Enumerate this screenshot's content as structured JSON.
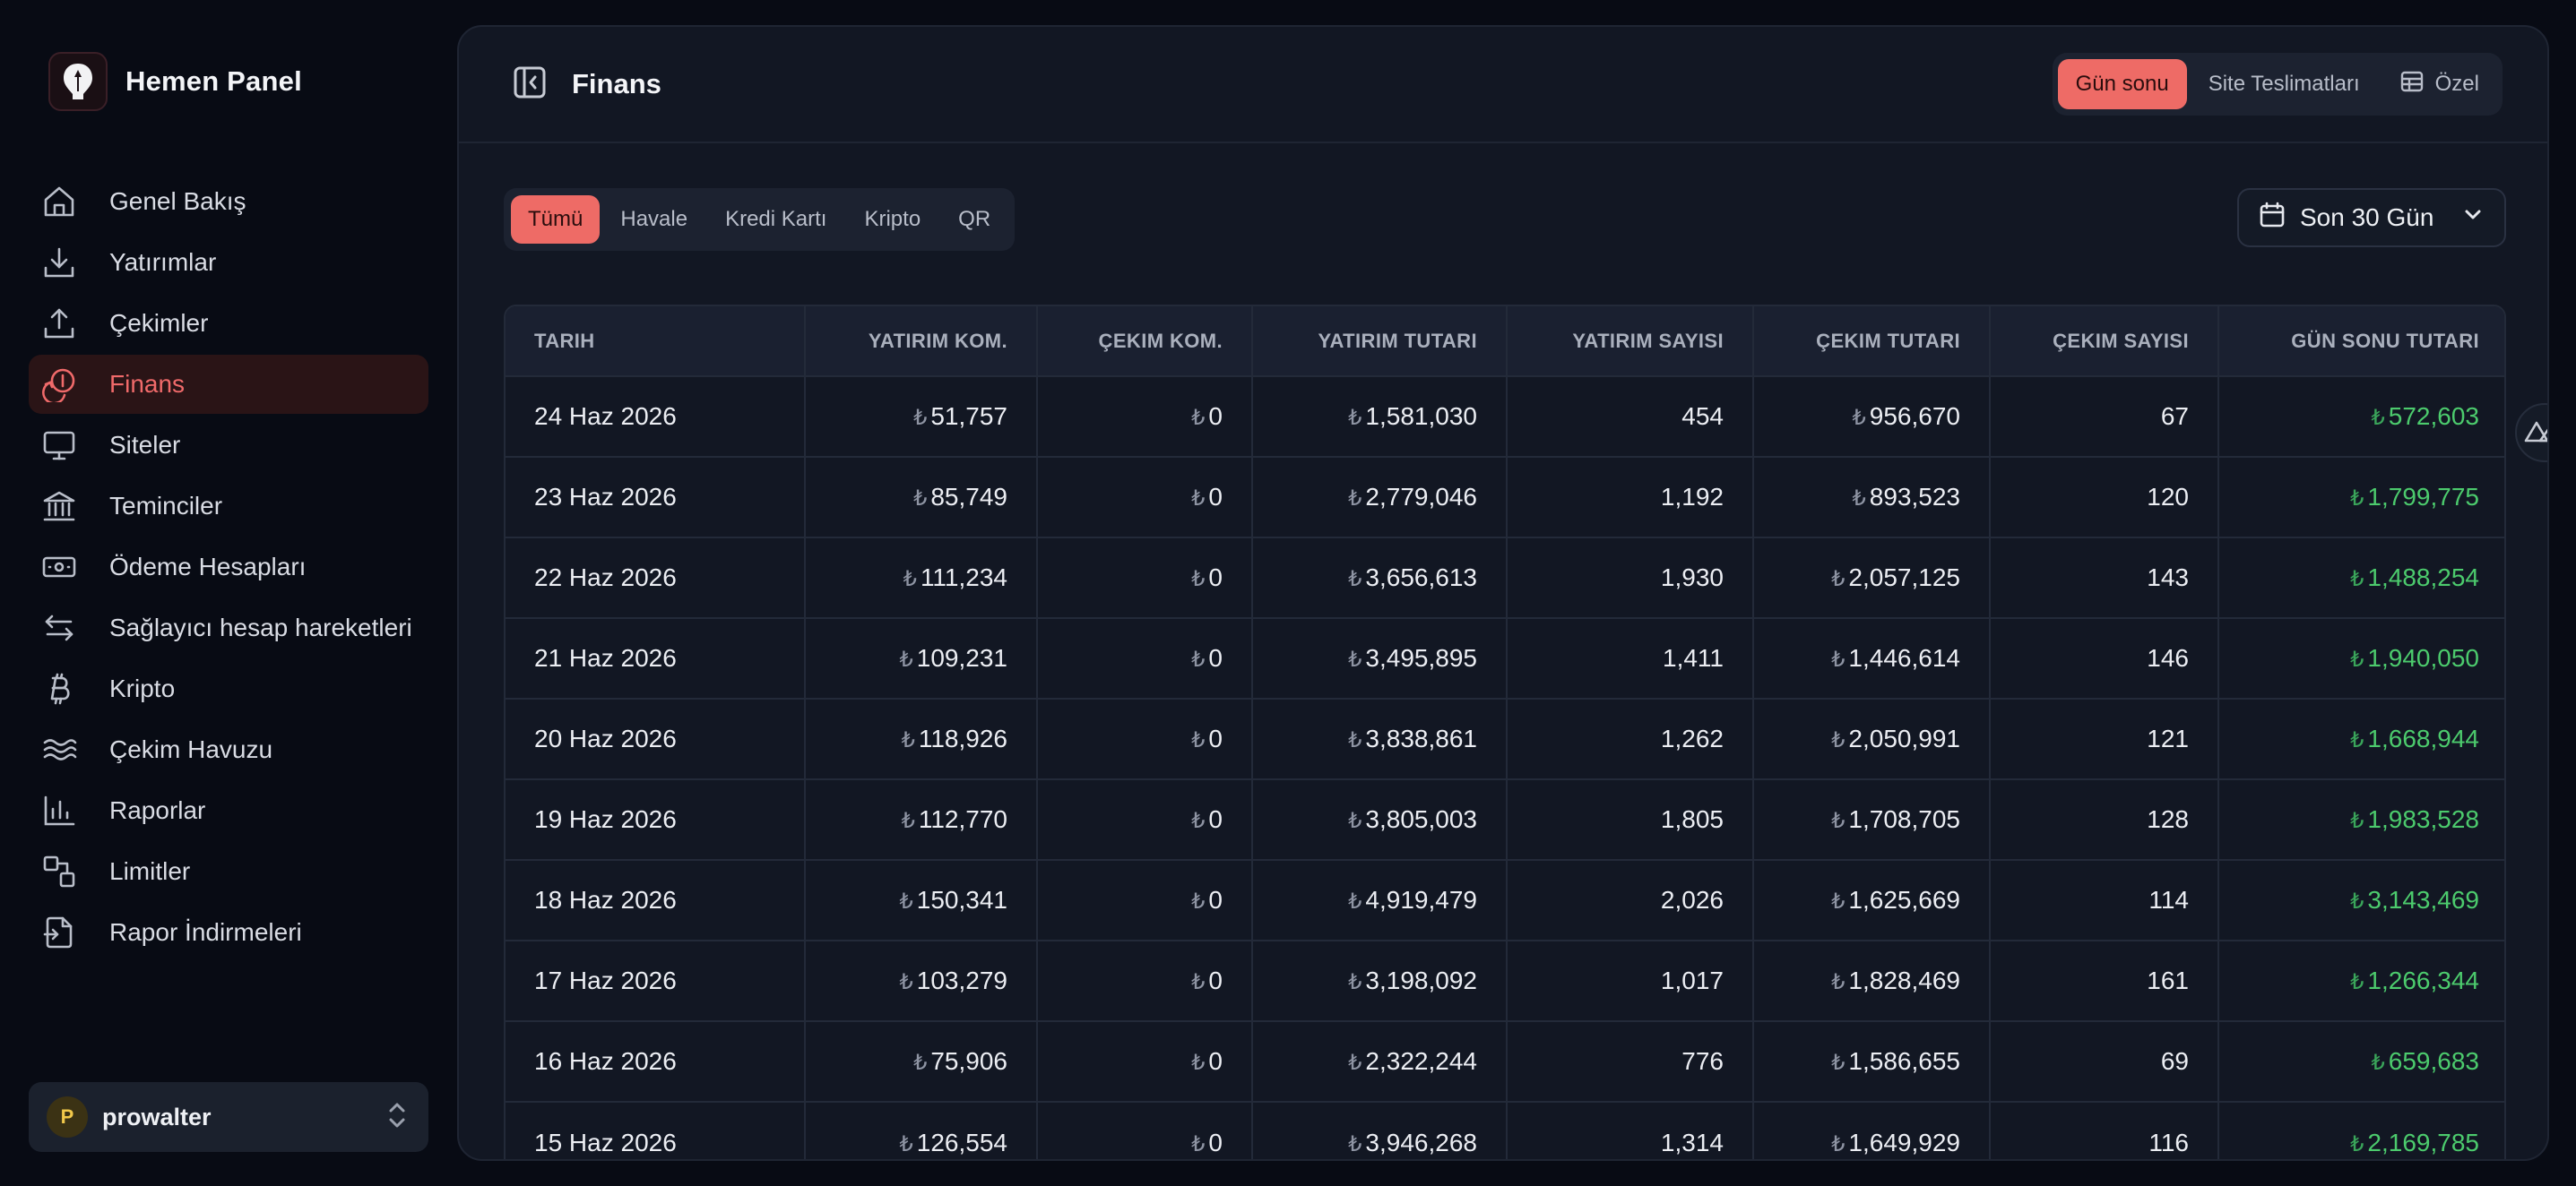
{
  "brand": {
    "name": "Hemen Panel"
  },
  "sidebar": {
    "items": [
      {
        "label": "Genel Bakış",
        "icon": "home-icon",
        "active": false
      },
      {
        "label": "Yatırımlar",
        "icon": "download-icon",
        "active": false
      },
      {
        "label": "Çekimler",
        "icon": "upload-icon",
        "active": false
      },
      {
        "label": "Finans",
        "icon": "finance-icon",
        "active": true
      },
      {
        "label": "Siteler",
        "icon": "monitor-icon",
        "active": false
      },
      {
        "label": "Teminciler",
        "icon": "bank-icon",
        "active": false
      },
      {
        "label": "Ödeme Hesapları",
        "icon": "banknote-icon",
        "active": false
      },
      {
        "label": "Sağlayıcı hesap hareketleri",
        "icon": "arrows-swap-icon",
        "active": false
      },
      {
        "label": "Kripto",
        "icon": "bitcoin-icon",
        "active": false
      },
      {
        "label": "Çekim Havuzu",
        "icon": "waves-icon",
        "active": false
      },
      {
        "label": "Raporlar",
        "icon": "bar-chart-icon",
        "active": false
      },
      {
        "label": "Limitler",
        "icon": "shapes-icon",
        "active": false
      },
      {
        "label": "Rapor İndirmeleri",
        "icon": "file-export-icon",
        "active": false
      }
    ],
    "user": {
      "initial": "P",
      "name": "prowalter"
    }
  },
  "header": {
    "title": "Finans",
    "views": [
      {
        "label": "Gün sonu",
        "active": true
      },
      {
        "label": "Site Teslimatları",
        "active": false
      },
      {
        "label": "Özel",
        "active": false,
        "icon": "table-icon"
      }
    ]
  },
  "filters": {
    "tabs": [
      {
        "label": "Tümü",
        "active": true
      },
      {
        "label": "Havale",
        "active": false
      },
      {
        "label": "Kredi Kartı",
        "active": false
      },
      {
        "label": "Kripto",
        "active": false
      },
      {
        "label": "QR",
        "active": false
      }
    ],
    "date_range": "Son 30 Gün"
  },
  "table": {
    "currency_symbol": "₺",
    "columns": [
      "TARIH",
      "YATIRIM KOM.",
      "ÇEKIM KOM.",
      "YATIRIM TUTARI",
      "YATIRIM SAYISI",
      "ÇEKIM TUTARI",
      "ÇEKIM SAYISI",
      "GÜN SONU TUTARI"
    ],
    "rows": [
      {
        "date": "24 Haz 2026",
        "dep_fee": "51,757",
        "wd_fee": "0",
        "dep_amount": "1,581,030",
        "dep_count": "454",
        "wd_amount": "956,670",
        "wd_count": "67",
        "eod": "572,603"
      },
      {
        "date": "23 Haz 2026",
        "dep_fee": "85,749",
        "wd_fee": "0",
        "dep_amount": "2,779,046",
        "dep_count": "1,192",
        "wd_amount": "893,523",
        "wd_count": "120",
        "eod": "1,799,775"
      },
      {
        "date": "22 Haz 2026",
        "dep_fee": "111,234",
        "wd_fee": "0",
        "dep_amount": "3,656,613",
        "dep_count": "1,930",
        "wd_amount": "2,057,125",
        "wd_count": "143",
        "eod": "1,488,254"
      },
      {
        "date": "21 Haz 2026",
        "dep_fee": "109,231",
        "wd_fee": "0",
        "dep_amount": "3,495,895",
        "dep_count": "1,411",
        "wd_amount": "1,446,614",
        "wd_count": "146",
        "eod": "1,940,050"
      },
      {
        "date": "20 Haz 2026",
        "dep_fee": "118,926",
        "wd_fee": "0",
        "dep_amount": "3,838,861",
        "dep_count": "1,262",
        "wd_amount": "2,050,991",
        "wd_count": "121",
        "eod": "1,668,944"
      },
      {
        "date": "19 Haz 2026",
        "dep_fee": "112,770",
        "wd_fee": "0",
        "dep_amount": "3,805,003",
        "dep_count": "1,805",
        "wd_amount": "1,708,705",
        "wd_count": "128",
        "eod": "1,983,528"
      },
      {
        "date": "18 Haz 2026",
        "dep_fee": "150,341",
        "wd_fee": "0",
        "dep_amount": "4,919,479",
        "dep_count": "2,026",
        "wd_amount": "1,625,669",
        "wd_count": "114",
        "eod": "3,143,469"
      },
      {
        "date": "17 Haz 2026",
        "dep_fee": "103,279",
        "wd_fee": "0",
        "dep_amount": "3,198,092",
        "dep_count": "1,017",
        "wd_amount": "1,828,469",
        "wd_count": "161",
        "eod": "1,266,344"
      },
      {
        "date": "16 Haz 2026",
        "dep_fee": "75,906",
        "wd_fee": "0",
        "dep_amount": "2,322,244",
        "dep_count": "776",
        "wd_amount": "1,586,655",
        "wd_count": "69",
        "eod": "659,683"
      },
      {
        "date": "15 Haz 2026",
        "dep_fee": "126,554",
        "wd_fee": "0",
        "dep_amount": "3,946,268",
        "dep_count": "1,314",
        "wd_amount": "1,649,929",
        "wd_count": "116",
        "eod": "2,169,785"
      }
    ]
  },
  "colors": {
    "accent": "#ee6b66",
    "positive": "#4ccb6d",
    "background": "#080b14",
    "panel": "#121723"
  }
}
